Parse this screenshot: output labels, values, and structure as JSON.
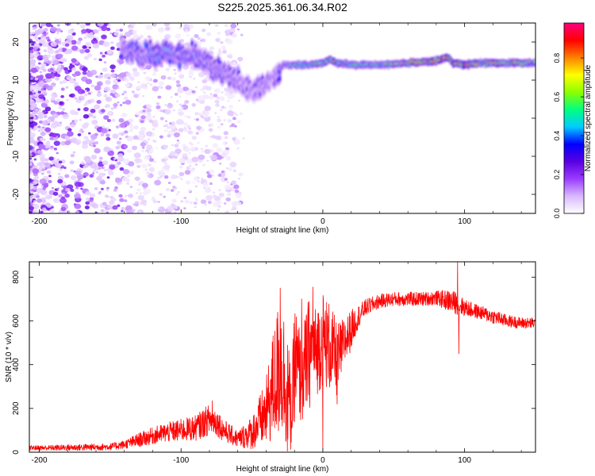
{
  "title": "S225.2025.361.06.34.R02",
  "colorbar": {
    "label": "Normalized spectral amplitude",
    "ticks": [
      "0.0",
      "0.2",
      "0.4",
      "0.6",
      "0.8"
    ],
    "tick_values": [
      0.0,
      0.2,
      0.4,
      0.6,
      0.8
    ],
    "range": [
      0,
      0.98
    ],
    "colormap": [
      "#ffffff",
      "#d9b8ff",
      "#9a3cff",
      "#5a00e0",
      "#0000ff",
      "#00ccff",
      "#00ff80",
      "#8cff00",
      "#ffff00",
      "#ff8000",
      "#ff0000",
      "#ff0080"
    ]
  },
  "chart_data": [
    {
      "type": "heatmap",
      "name": "spectrogram",
      "xlabel": "Height of straight line (km)",
      "ylabel": "Frequency (Hz)",
      "xlim": [
        -207,
        150
      ],
      "ylim": [
        -25,
        25
      ],
      "xticks": [
        -200,
        -100,
        0,
        100
      ],
      "xtick_labels": [
        "-200",
        "-100",
        "0",
        "100"
      ],
      "yticks": [
        -20,
        -10,
        0,
        10,
        20
      ],
      "ytick_labels": [
        "-20",
        "-10",
        "0",
        "10",
        "20"
      ],
      "ridge": {
        "x": [
          -140,
          -130,
          -120,
          -110,
          -100,
          -90,
          -80,
          -70,
          -60,
          -50,
          -40,
          -32,
          -28,
          -20,
          -10,
          0,
          5,
          10,
          20,
          40,
          60,
          80,
          88,
          92,
          100,
          110,
          130,
          150
        ],
        "y": [
          18.5,
          17,
          16.5,
          17.5,
          16.5,
          16,
          14,
          12,
          10,
          7,
          9,
          11,
          14,
          14,
          14,
          14.5,
          15.5,
          14.5,
          14,
          14,
          14.5,
          15,
          16,
          14.5,
          14,
          14.5,
          14.5,
          14.5
        ],
        "amplitude": [
          0.35,
          0.4,
          0.45,
          0.45,
          0.4,
          0.4,
          0.35,
          0.35,
          0.3,
          0.3,
          0.3,
          0.3,
          0.45,
          0.55,
          0.6,
          0.65,
          0.8,
          0.75,
          0.6,
          0.6,
          0.75,
          0.85,
          0.9,
          0.85,
          0.9,
          0.8,
          0.75,
          0.7
        ]
      }
    },
    {
      "type": "line",
      "name": "snr",
      "xlabel": "Height of straight line (km)",
      "ylabel": "SNR (10 * v/v)",
      "xlim": [
        -207,
        150
      ],
      "ylim": [
        0,
        870
      ],
      "xticks": [
        -200,
        -100,
        0,
        100
      ],
      "xtick_labels": [
        "-200",
        "-100",
        "0",
        "100"
      ],
      "yticks": [
        0,
        200,
        400,
        600,
        800
      ],
      "ytick_labels": [
        "0",
        "200",
        "400",
        "600",
        "800"
      ],
      "color": "#ff0000",
      "series": [
        {
          "x": [
            -207,
            -190,
            -170,
            -150,
            -140,
            -130,
            -120,
            -110,
            -100,
            -90,
            -80,
            -75,
            -70,
            -60,
            -50,
            -40,
            -35,
            -30,
            -25,
            -22,
            -20,
            -15,
            -10,
            -5,
            0,
            5,
            10,
            15,
            20,
            25,
            30,
            40,
            50,
            60,
            70,
            80,
            90,
            95,
            100,
            110,
            120,
            130,
            140,
            150
          ],
          "y": [
            20,
            20,
            22,
            25,
            35,
            55,
            75,
            90,
            100,
            110,
            150,
            140,
            100,
            60,
            90,
            180,
            300,
            400,
            300,
            150,
            420,
            330,
            450,
            460,
            520,
            480,
            420,
            500,
            560,
            620,
            660,
            690,
            700,
            700,
            700,
            705,
            690,
            680,
            660,
            640,
            620,
            600,
            590,
            590
          ],
          "noise": [
            8,
            10,
            12,
            12,
            15,
            25,
            30,
            35,
            40,
            45,
            55,
            50,
            40,
            30,
            60,
            120,
            200,
            260,
            220,
            120,
            220,
            160,
            200,
            160,
            170,
            160,
            130,
            90,
            70,
            40,
            30,
            25,
            25,
            25,
            25,
            25,
            40,
            40,
            30,
            25,
            25,
            22,
            20,
            20
          ],
          "spikes": [
            [
              -78,
              235
            ],
            [
              -30,
              750
            ],
            [
              -25,
              5
            ],
            [
              -15,
              700
            ],
            [
              -7,
              755
            ],
            [
              0,
              10
            ],
            [
              10,
              220
            ],
            [
              95,
              870
            ],
            [
              96,
              450
            ]
          ]
        }
      ]
    }
  ]
}
